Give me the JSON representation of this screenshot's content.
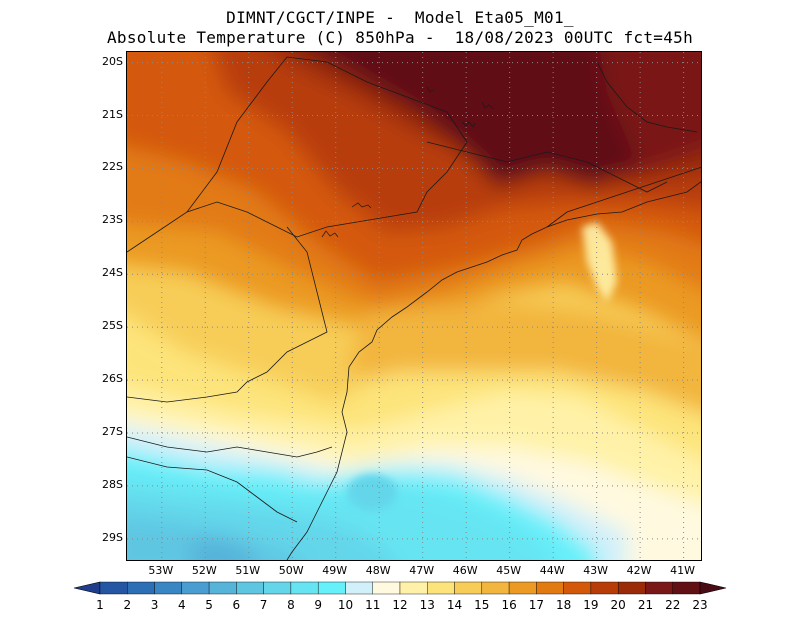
{
  "header": {
    "line1": "DIMNT/CGCT/INPE -  Model Eta05_M01_",
    "line2": "Absolute Temperature (C) 850hPa -  18/08/2023 00UTC fct=45h"
  },
  "map": {
    "lat_ticks": [
      "20S",
      "21S",
      "22S",
      "23S",
      "24S",
      "25S",
      "26S",
      "27S",
      "28S",
      "29S"
    ],
    "lon_ticks": [
      "53W",
      "52W",
      "51W",
      "50W",
      "49W",
      "48W",
      "47W",
      "46W",
      "45W",
      "44W",
      "43W",
      "42W",
      "41W"
    ],
    "lon_range": [
      -53.8,
      -40.6
    ],
    "lat_range": [
      -29.4,
      -19.8
    ]
  },
  "colorbar": {
    "labels": [
      "1",
      "2",
      "3",
      "4",
      "5",
      "6",
      "7",
      "8",
      "9",
      "10",
      "11",
      "12",
      "13",
      "14",
      "15",
      "16",
      "17",
      "18",
      "19",
      "20",
      "21",
      "22",
      "23"
    ],
    "colors": [
      "#1f3d8c",
      "#2456a3",
      "#2c6fb5",
      "#3a86c4",
      "#4a9dd0",
      "#56b3da",
      "#5fc6e2",
      "#63d6ea",
      "#66e4f2",
      "#66f0fa",
      "#d2f0fa",
      "#fff9e0",
      "#fff2a8",
      "#fde47a",
      "#f7cd58",
      "#f2b53e",
      "#eb9a24",
      "#e27a12",
      "#d4580a",
      "#b83c08",
      "#9a2a08",
      "#7a1818",
      "#611014",
      "#4a0c14"
    ]
  }
}
